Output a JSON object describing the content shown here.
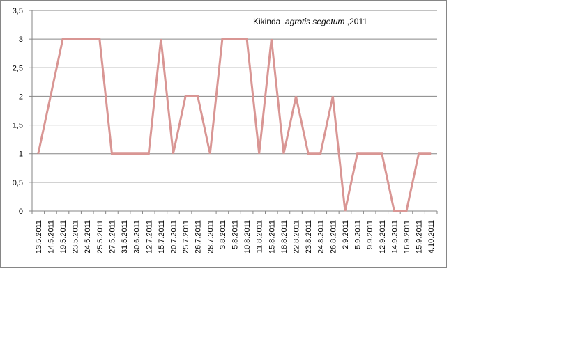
{
  "chart_data": {
    "type": "line",
    "title_parts": [
      "Kikinda ,",
      "agrotis segetum",
      " ,2011"
    ],
    "xlabel": "",
    "ylabel": "",
    "ylim": [
      0,
      3.5
    ],
    "y_ticks": [
      "0",
      "0,5",
      "1",
      "1,5",
      "2",
      "2,5",
      "3",
      "3,5"
    ],
    "grid": true,
    "legend": "none",
    "line_color": "#D99694",
    "categories": [
      "13.5.2011",
      "14.5.2011",
      "19.5.2011",
      "23.5.2011",
      "24.5.2011",
      "25.5.2011",
      "27.5.2011",
      "31.5.2011",
      "30.6.2011",
      "12.7.2011",
      "15.7.2011",
      "20.7.2011",
      "25.7.2011",
      "26.7.2011",
      "28.7.2011",
      "3.8.2011",
      "5.8.2011",
      "10.8.2011",
      "11.8.2011",
      "15.8.2011",
      "18.8.2011",
      "22.8.2011",
      "23.8.2011",
      "24.8.2011",
      "26.8.2011",
      "2.9.2011",
      "5.9.2011",
      "9.9.2011",
      "12.9.2011",
      "14.9.2011",
      "16.9.2011",
      "15.9.2011",
      "4.10.2011"
    ],
    "series": [
      {
        "values": [
          1,
          2,
          3,
          3,
          3,
          3,
          1,
          1,
          1,
          1,
          3,
          1,
          2,
          2,
          1,
          3,
          3,
          3,
          1,
          3,
          1,
          2,
          1,
          1,
          2,
          0,
          1,
          1,
          1,
          0,
          0,
          1,
          1
        ]
      }
    ]
  }
}
